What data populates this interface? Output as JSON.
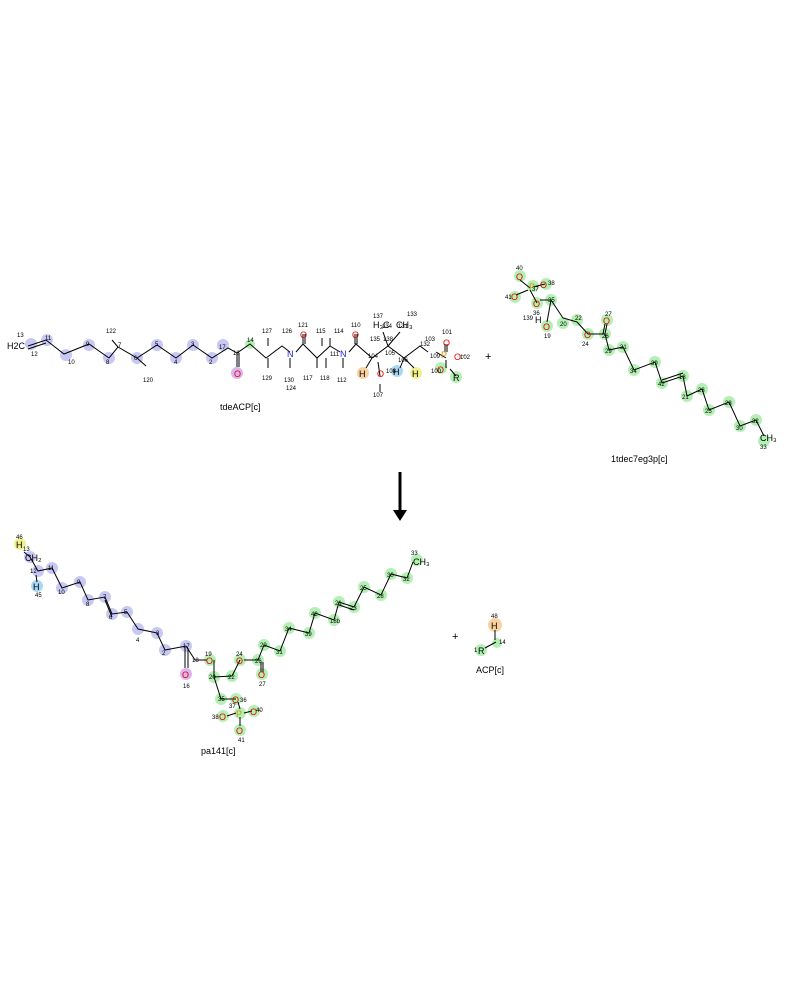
{
  "reaction": {
    "reactants": [
      {
        "name": "tdeACP[c]"
      },
      {
        "name": "1tdec7eg3p[c]"
      }
    ],
    "products": [
      {
        "name": "pa141[c]"
      },
      {
        "name": "ACP[c]"
      }
    ],
    "plus_sign": "+",
    "arrow": "→"
  },
  "colors": {
    "blue": "#c8c8f4",
    "green": "#b4f0b4",
    "orange": "#fad2a0",
    "lightblue": "#a8d8f4",
    "yellow": "#f0f08c",
    "violet": "#dcb4f0",
    "oxygen": "#e00000",
    "nitrogen": "#2020e0",
    "phosphorus": "#d89000",
    "text": "#000000"
  },
  "molecules": {
    "tdeACP": {
      "carbon_labels": [
        "13",
        "12",
        "11",
        "10",
        "9",
        "8",
        "7",
        "6",
        "5",
        "4",
        "3",
        "2",
        "17",
        "18",
        "14",
        "15",
        "16",
        "19",
        "20",
        "21",
        "23",
        "22",
        "25",
        "24",
        "26",
        "27",
        "28",
        "29",
        "30",
        "31",
        "32",
        "33"
      ],
      "atom_labels": {
        "h2c": "H2C",
        "o16": "O",
        "n_a": "N",
        "o_b": "O",
        "n_c": "N",
        "o_d": "O",
        "h48": "H",
        "o_e": "O",
        "h45": "H",
        "h46": "H",
        "p": "P",
        "o101": "O",
        "o_minus": "O⁻",
        "o99": "O",
        "r": "R",
        "h_ch3a": "H₃C",
        "h_ch3b": "CH₃"
      },
      "hydrogen_numbers": [
        "122",
        "120",
        "127",
        "129",
        "126",
        "130",
        "121",
        "117",
        "124",
        "115",
        "118",
        "114",
        "112",
        "110",
        "111",
        "137",
        "134",
        "133",
        "135",
        "138",
        "131",
        "132",
        "103",
        "101",
        "102",
        "104",
        "105",
        "106",
        "107",
        "108",
        "109",
        "100",
        "99"
      ]
    },
    "tdec7eg3p": {
      "atom_labels": {
        "p": "P",
        "o40": "O",
        "o38": "O",
        "o41": "O",
        "o36": "O",
        "o19": "O",
        "o24": "O",
        "o27": "O",
        "ch3": "CH₃",
        "h139": "H"
      },
      "numbers": [
        "40",
        "38",
        "37",
        "41",
        "35",
        "36",
        "139",
        "19",
        "20",
        "22",
        "24",
        "27",
        "26",
        "29",
        "31",
        "34",
        "39",
        "42",
        "18",
        "21",
        "23",
        "25",
        "28",
        "30",
        "32",
        "33"
      ]
    },
    "pa141": {
      "atom_labels": {
        "h46": "H",
        "ch2": "CH₂",
        "h45": "H",
        "o16": "O",
        "o19": "O",
        "o24": "O",
        "o27": "O",
        "p": "P",
        "o36": "O",
        "o38": "O",
        "o40": "O⁻",
        "o41": "O",
        "ch3": "CH₃"
      },
      "numbers": [
        "46",
        "13",
        "12",
        "45",
        "11",
        "10",
        "9",
        "8",
        "7",
        "6",
        "5",
        "4",
        "3",
        "2",
        "17",
        "18",
        "16",
        "19",
        "20",
        "22",
        "35",
        "37",
        "36",
        "38",
        "40",
        "41",
        "24",
        "26",
        "27",
        "29",
        "31",
        "34",
        "39",
        "42",
        "18b",
        "21",
        "23",
        "25",
        "28",
        "30",
        "32",
        "33"
      ]
    },
    "acp": {
      "atom_labels": {
        "h48": "H",
        "r": "R",
        "minus": "+"
      },
      "numbers": [
        "48",
        "14",
        "1"
      ]
    }
  }
}
